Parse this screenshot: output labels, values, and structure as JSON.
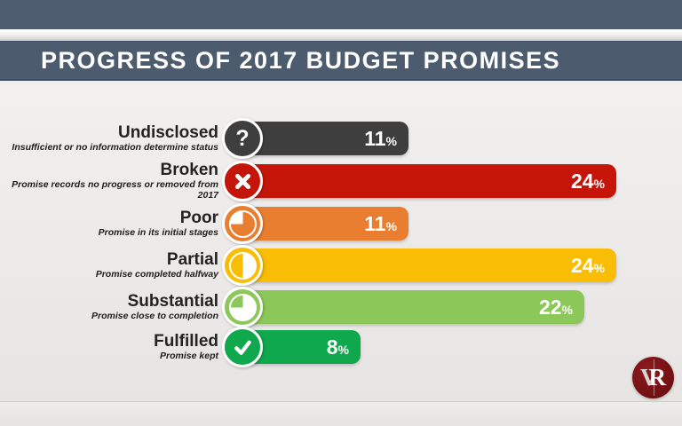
{
  "header": {
    "title": "PROGRESS OF 2017 BUDGET PROMISES"
  },
  "logo": {
    "monogram_left": "V",
    "monogram_right": "R"
  },
  "chart_data": {
    "type": "bar",
    "orientation": "horizontal",
    "title": "PROGRESS OF 2017 BUDGET PROMISES",
    "unit": "%",
    "value_range": [
      0,
      24
    ],
    "categories": [
      "Undisclosed",
      "Broken",
      "Poor",
      "Partial",
      "Substantial",
      "Fulfilled"
    ],
    "values": [
      11,
      24,
      11,
      24,
      22,
      8
    ],
    "rows": [
      {
        "label": "Undisclosed",
        "description": "Insufficient or no information determine status",
        "value": 11,
        "color": "#3e3e3e",
        "icon": "question",
        "icon_glyph": "?"
      },
      {
        "label": "Broken",
        "description": "Promise records no progress or removed from 2017",
        "value": 24,
        "color": "#c41508",
        "icon": "cross"
      },
      {
        "label": "Poor",
        "description": "Promise in its initial stages",
        "value": 11,
        "color": "#e97e31",
        "icon": "pie-quarter"
      },
      {
        "label": "Partial",
        "description": "Promise completed halfway",
        "value": 24,
        "color": "#f9bd05",
        "icon": "pie-half"
      },
      {
        "label": "Substantial",
        "description": "Promise close to completion",
        "value": 22,
        "color": "#8cc75a",
        "icon": "pie-three-quarter"
      },
      {
        "label": "Fulfilled",
        "description": "Promise kept",
        "value": 8,
        "color": "#0fa84d",
        "icon": "check"
      }
    ]
  }
}
